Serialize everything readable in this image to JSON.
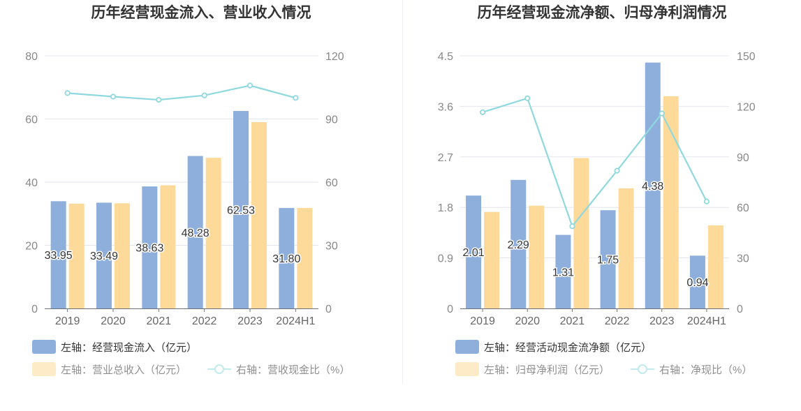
{
  "panels": [
    {
      "title": "历年经营现金流入、营业收入情况",
      "legend": {
        "bar1": "左轴：经营现金流入（亿元）",
        "bar2": "左轴：营业总收入（亿元）",
        "line": "右轴：营收现金比（%）"
      }
    },
    {
      "title": "历年经营现金流净额、归母净利润情况",
      "legend": {
        "bar1": "左轴：经营活动现金流净额（亿元）",
        "bar2": "左轴：归母净利润（亿元）",
        "line": "右轴：净现比（%）"
      }
    }
  ],
  "colors": {
    "bar1": "#8eaedc",
    "bar2": "#fdd99a",
    "line": "#8fd9de",
    "grid": "#e3e6ee",
    "axis": "#888888"
  },
  "chart_data": [
    {
      "type": "bar",
      "title": "历年经营现金流入、营业收入情况",
      "categories": [
        "2019",
        "2020",
        "2021",
        "2022",
        "2023",
        "2024H1"
      ],
      "y_left": {
        "ticks": [
          "0",
          "20",
          "40",
          "60",
          "80"
        ],
        "ylim": [
          0,
          80
        ]
      },
      "y_right": {
        "ticks": [
          "0",
          "30",
          "60",
          "90",
          "120"
        ],
        "ylim": [
          0,
          120
        ]
      },
      "series": [
        {
          "name": "左轴：经营现金流入（亿元）",
          "type": "bar",
          "axis": "left",
          "values": [
            33.95,
            33.49,
            38.63,
            48.28,
            62.53,
            31.8
          ],
          "labels": [
            "33.95",
            "33.49",
            "38.63",
            "48.28",
            "62.53",
            "31.80"
          ]
        },
        {
          "name": "左轴：营业总收入（亿元）",
          "type": "bar",
          "axis": "left",
          "values": [
            33.2,
            33.3,
            39.0,
            47.7,
            59.0,
            31.8
          ]
        },
        {
          "name": "右轴：营收现金比（%）",
          "type": "line",
          "axis": "right",
          "values": [
            102.3,
            100.6,
            99.1,
            101.2,
            105.9,
            100.0
          ]
        }
      ],
      "grid": true,
      "legend_position": "bottom"
    },
    {
      "type": "bar",
      "title": "历年经营现金流净额、归母净利润情况",
      "categories": [
        "2019",
        "2020",
        "2021",
        "2022",
        "2023",
        "2024H1"
      ],
      "y_left": {
        "ticks": [
          "0",
          "0.9",
          "1.8",
          "2.7",
          "3.6",
          "4.5"
        ],
        "ylim": [
          0,
          4.5
        ]
      },
      "y_right": {
        "ticks": [
          "0",
          "30",
          "60",
          "90",
          "120",
          "150"
        ],
        "ylim": [
          0,
          150
        ]
      },
      "series": [
        {
          "name": "左轴：经营活动现金流净额（亿元）",
          "type": "bar",
          "axis": "left",
          "values": [
            2.01,
            2.29,
            1.31,
            1.75,
            4.38,
            0.94
          ],
          "labels": [
            "2.01",
            "2.29",
            "1.31",
            "1.75",
            "4.38",
            "0.94"
          ]
        },
        {
          "name": "左轴：归母净利润（亿元）",
          "type": "bar",
          "axis": "left",
          "values": [
            1.72,
            1.83,
            2.68,
            2.14,
            3.78,
            1.48
          ]
        },
        {
          "name": "右轴：净现比（%）",
          "type": "line",
          "axis": "right",
          "values": [
            116.5,
            124.8,
            48.8,
            81.8,
            115.8,
            63.5
          ]
        }
      ],
      "grid": true,
      "legend_position": "bottom"
    }
  ]
}
